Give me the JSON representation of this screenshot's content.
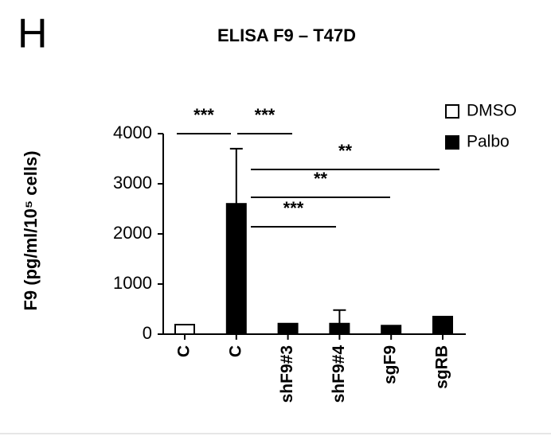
{
  "panel_label": "H",
  "chart_data": {
    "type": "bar",
    "title": "ELISA F9 – T47D",
    "y_label": "F9 (pg/ml/10⁵ cells)",
    "categories": [
      "C",
      "C",
      "shF9#3",
      "shF9#4",
      "sgF9",
      "sgRB"
    ],
    "series": [
      {
        "name": "DMSO",
        "color": "#ffffff",
        "values": [
          190,
          null,
          null,
          null,
          null,
          null
        ],
        "errors": [
          null,
          null,
          null,
          null,
          null,
          null
        ]
      },
      {
        "name": "Palbo",
        "color": "#000000",
        "values": [
          null,
          2600,
          210,
          210,
          170,
          350
        ],
        "errors": [
          null,
          1100,
          null,
          270,
          null,
          null
        ]
      }
    ],
    "annotations": [
      "***",
      "***",
      "**",
      "**",
      "***"
    ],
    "ylim": [
      0,
      4000
    ],
    "yticks": [
      0,
      1000,
      2000,
      3000,
      4000
    ],
    "legend": "top-right"
  }
}
